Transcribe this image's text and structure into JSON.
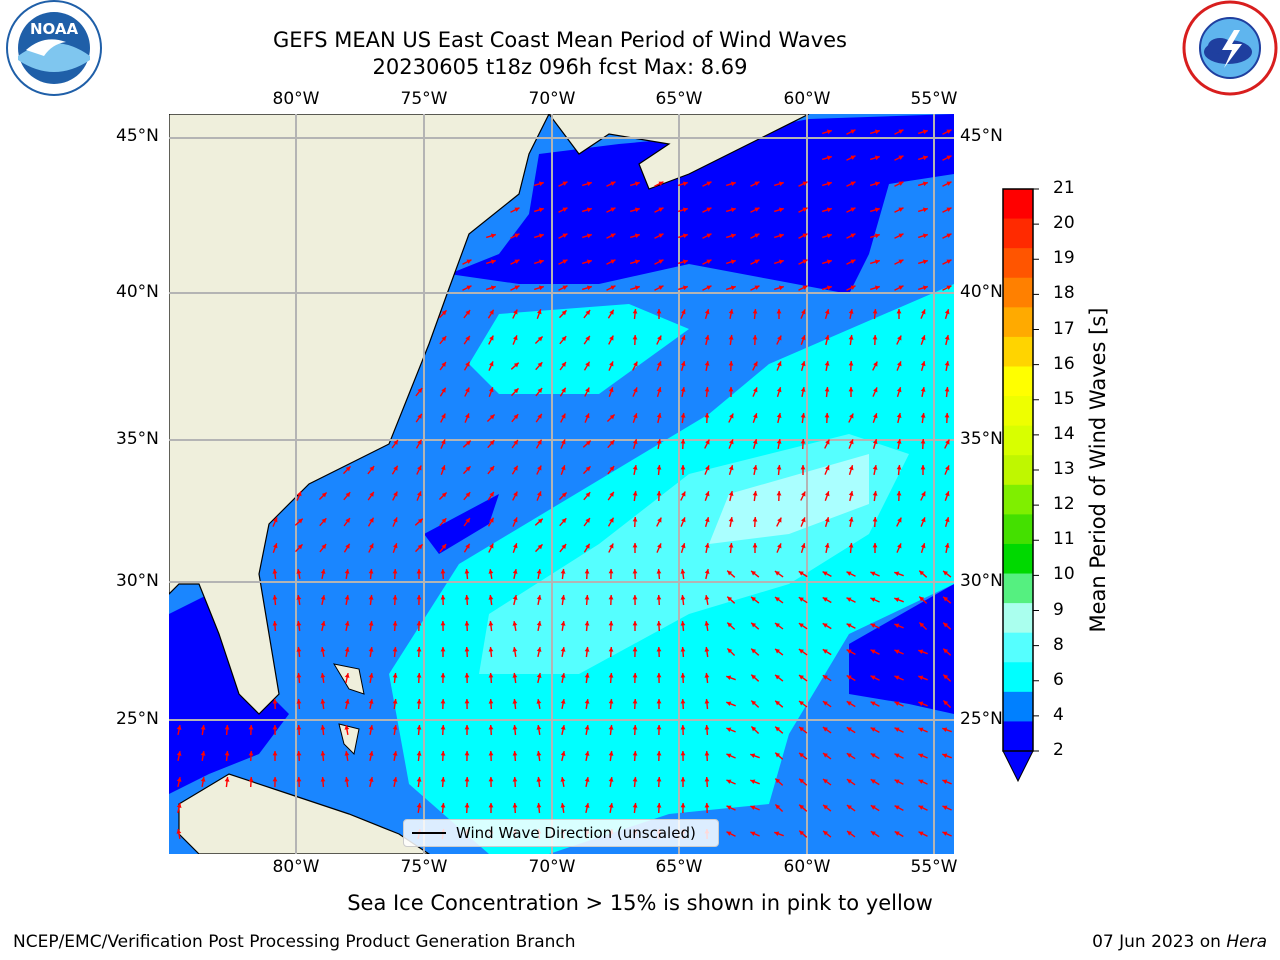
{
  "header": {
    "title_line1": "GEFS MEAN US East Coast Mean Period of Wind Waves",
    "title_line2": "20230605 t18z 096h fcst   Max: 8.69"
  },
  "logos": {
    "left": {
      "text": "NOAA",
      "ring": "NATIONAL OCEANIC AND ATMOSPHERIC ADMINISTRATION · U.S. DEPARTMENT OF COMMERCE",
      "color": "#1f5fa8"
    },
    "right": {
      "ring": "NATIONAL WEATHER SERVICE",
      "color": "#d81e1e"
    }
  },
  "axes": {
    "lon_labels": [
      "80°W",
      "75°W",
      "70°W",
      "65°W",
      "60°W",
      "55°W"
    ],
    "lat_labels": [
      "45°N",
      "40°N",
      "35°N",
      "30°N",
      "25°N"
    ]
  },
  "colorbar": {
    "label": "Mean Period of Wind Waves [s]",
    "ticks": [
      "21",
      "20",
      "19",
      "18",
      "17",
      "16",
      "15",
      "14",
      "13",
      "12",
      "11",
      "10",
      "9",
      "8",
      "6",
      "4",
      "2"
    ],
    "colors": [
      "#ff0000",
      "#ff2a00",
      "#ff5500",
      "#ff8000",
      "#ffaa00",
      "#ffd400",
      "#ffff00",
      "#eeff00",
      "#d8ff00",
      "#bff700",
      "#7fef00",
      "#44e000",
      "#00d900",
      "#55f080",
      "#aaffee",
      "#55ffff",
      "#00ffff",
      "#0080ff",
      "#0000ff"
    ]
  },
  "map": {
    "colors": {
      "land": "#efefdc",
      "level_2_4": "#0000ff",
      "level_4_6": "#1a86ff",
      "level_6_8": "#00ffff",
      "level_8_9": "#55ffff",
      "level_9_10": "#aaffff",
      "arrow": "#ff0000",
      "grid": "#b4b4b4"
    }
  },
  "legend": {
    "label": "Wind Wave Direction (unscaled)"
  },
  "note": "Sea Ice Concentration > 15% is shown in pink to yellow",
  "footer": {
    "left": "NCEP/EMC/Verification Post Processing Product Generation Branch",
    "right_prefix": "07 Jun 2023 on ",
    "right_host": "Hera"
  }
}
